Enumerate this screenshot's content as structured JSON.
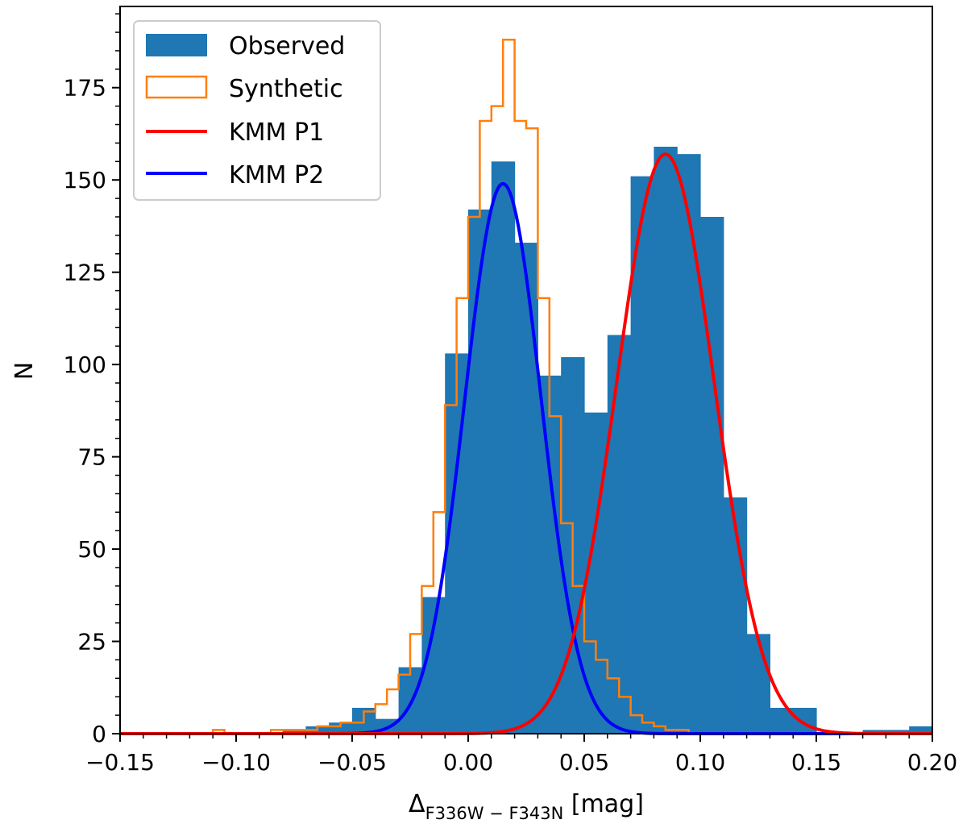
{
  "chart_data": {
    "type": "histogram",
    "title": "",
    "xlabel_main": "Δ",
    "xlabel_sub": "F336W − F343N",
    "xlabel_unit": " [mag]",
    "ylabel": "N",
    "xlim": [
      -0.15,
      0.2
    ],
    "ylim": [
      0,
      197
    ],
    "x_ticks": [
      -0.15,
      -0.1,
      -0.05,
      0.0,
      0.05,
      0.1,
      0.15,
      0.2
    ],
    "x_tick_labels": [
      "−0.15",
      "−0.10",
      "−0.05",
      "0.00",
      "0.05",
      "0.10",
      "0.15",
      "0.20"
    ],
    "y_ticks": [
      0,
      25,
      50,
      75,
      100,
      125,
      150,
      175
    ],
    "y_tick_labels": [
      "0",
      "25",
      "50",
      "75",
      "100",
      "125",
      "150",
      "175"
    ],
    "observed": {
      "name": "Observed",
      "color": "#1f77b4",
      "bin_edges": [
        -0.15,
        -0.14,
        -0.13,
        -0.12,
        -0.11,
        -0.1,
        -0.09,
        -0.08,
        -0.07,
        -0.06,
        -0.05,
        -0.04,
        -0.03,
        -0.02,
        -0.01,
        0.0,
        0.01,
        0.02,
        0.03,
        0.04,
        0.05,
        0.06,
        0.07,
        0.08,
        0.09,
        0.1,
        0.11,
        0.12,
        0.13,
        0.14,
        0.15,
        0.16,
        0.17,
        0.18,
        0.19,
        0.2
      ],
      "counts": [
        0,
        0,
        0,
        0,
        0,
        0,
        0,
        1,
        2,
        3,
        7,
        4,
        18,
        37,
        103,
        142,
        155,
        133,
        97,
        102,
        87,
        108,
        151,
        159,
        157,
        140,
        64,
        27,
        7,
        7,
        0,
        0,
        1,
        1,
        2
      ]
    },
    "synthetic": {
      "name": "Synthetic",
      "color": "#ff7f0e",
      "bin_edges": [
        -0.15,
        -0.145,
        -0.14,
        -0.135,
        -0.13,
        -0.125,
        -0.12,
        -0.115,
        -0.11,
        -0.105,
        -0.1,
        -0.095,
        -0.09,
        -0.085,
        -0.08,
        -0.075,
        -0.07,
        -0.065,
        -0.06,
        -0.055,
        -0.05,
        -0.045,
        -0.04,
        -0.035,
        -0.03,
        -0.025,
        -0.02,
        -0.015,
        -0.01,
        -0.005,
        0.0,
        0.005,
        0.01,
        0.015,
        0.02,
        0.025,
        0.03,
        0.035,
        0.04,
        0.045,
        0.05,
        0.055,
        0.06,
        0.065,
        0.07,
        0.075,
        0.08,
        0.085,
        0.09,
        0.095,
        0.1,
        0.105,
        0.11,
        0.115,
        0.12,
        0.125,
        0.13,
        0.135,
        0.14,
        0.145,
        0.15,
        0.155,
        0.16,
        0.165,
        0.17,
        0.175,
        0.18,
        0.185,
        0.19,
        0.195,
        0.2
      ],
      "counts": [
        0,
        0,
        0,
        0,
        0,
        0,
        0,
        0,
        1,
        0,
        0,
        0,
        0,
        1,
        1,
        1,
        1,
        2,
        2,
        3,
        3,
        6,
        8,
        12,
        16,
        27,
        40,
        60,
        89,
        118,
        140,
        166,
        170,
        188,
        166,
        164,
        118,
        86,
        57,
        40,
        25,
        20,
        15,
        10,
        5,
        3,
        2,
        1,
        1,
        0,
        0,
        0,
        0,
        0,
        0,
        0,
        0,
        0,
        0,
        0,
        0,
        0,
        0,
        0,
        0,
        0,
        0,
        0,
        0,
        0
      ]
    },
    "curves": [
      {
        "name": "KMM P1",
        "color": "#ff0000",
        "mean": 0.085,
        "sigma": 0.021,
        "amplitude": 157
      },
      {
        "name": "KMM P2",
        "color": "#0000ff",
        "mean": 0.015,
        "sigma": 0.0165,
        "amplitude": 149
      }
    ],
    "legend_position": "upper-left"
  }
}
